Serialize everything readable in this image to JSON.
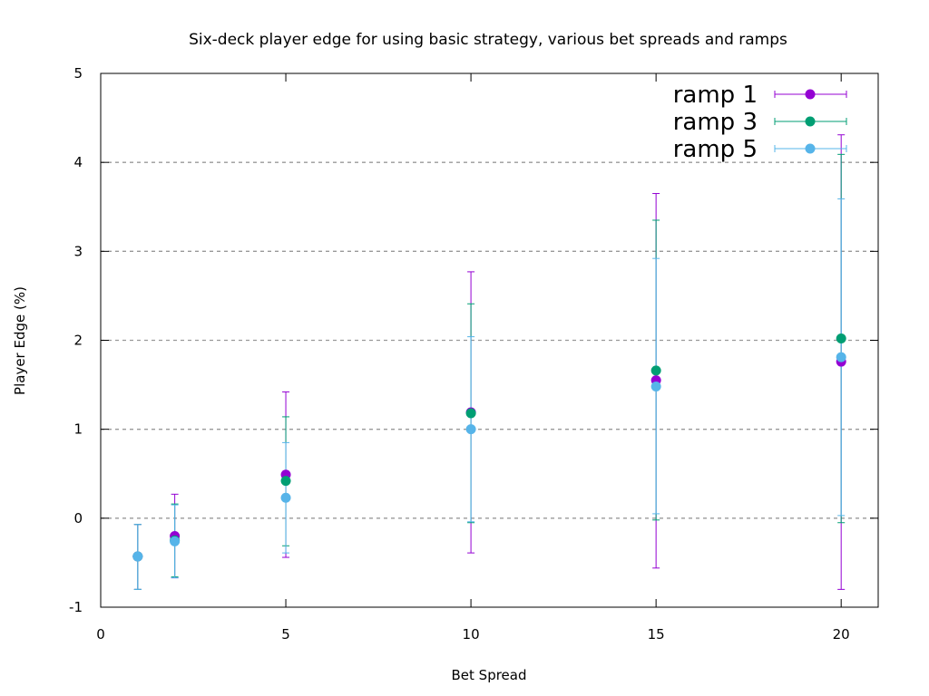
{
  "chart_data": {
    "type": "scatter",
    "title": "Six-deck player edge for using basic strategy, various bet spreads and ramps",
    "xlabel": "Bet Spread",
    "ylabel": "Player Edge (%)",
    "xlim": [
      0,
      21
    ],
    "ylim": [
      -1,
      5
    ],
    "xticks": [
      0,
      5,
      10,
      15,
      20
    ],
    "yticks": [
      -1,
      0,
      1,
      2,
      3,
      4,
      5
    ],
    "grid": "horizontal dashed",
    "legend": "top-right",
    "error_bars": true,
    "series": [
      {
        "name": "ramp 1",
        "color": "#9400d3",
        "points": [
          {
            "x": 1,
            "y": -0.43,
            "low": -0.8,
            "high": -0.07
          },
          {
            "x": 2,
            "y": -0.2,
            "low": -0.67,
            "high": 0.27
          },
          {
            "x": 5,
            "y": 0.49,
            "low": -0.44,
            "high": 1.42
          },
          {
            "x": 10,
            "y": 1.19,
            "low": -0.39,
            "high": 2.77
          },
          {
            "x": 15,
            "y": 1.55,
            "low": -0.56,
            "high": 3.65
          },
          {
            "x": 20,
            "y": 1.76,
            "low": -0.8,
            "high": 4.31
          }
        ]
      },
      {
        "name": "ramp 3",
        "color": "#009e73",
        "points": [
          {
            "x": 1,
            "y": -0.43,
            "low": -0.8,
            "high": -0.07
          },
          {
            "x": 2,
            "y": -0.25,
            "low": -0.66,
            "high": 0.16
          },
          {
            "x": 5,
            "y": 0.42,
            "low": -0.31,
            "high": 1.14
          },
          {
            "x": 10,
            "y": 1.18,
            "low": -0.05,
            "high": 2.41
          },
          {
            "x": 15,
            "y": 1.66,
            "low": -0.02,
            "high": 3.35
          },
          {
            "x": 20,
            "y": 2.02,
            "low": -0.05,
            "high": 4.09
          }
        ]
      },
      {
        "name": "ramp 5",
        "color": "#56b4e9",
        "points": [
          {
            "x": 1,
            "y": -0.43,
            "low": -0.8,
            "high": -0.07
          },
          {
            "x": 2,
            "y": -0.26,
            "low": -0.67,
            "high": 0.15
          },
          {
            "x": 5,
            "y": 0.23,
            "low": -0.39,
            "high": 0.85
          },
          {
            "x": 10,
            "y": 1.0,
            "low": -0.04,
            "high": 2.04
          },
          {
            "x": 15,
            "y": 1.48,
            "low": 0.05,
            "high": 2.92
          },
          {
            "x": 20,
            "y": 1.81,
            "low": 0.03,
            "high": 3.59
          }
        ]
      }
    ]
  }
}
